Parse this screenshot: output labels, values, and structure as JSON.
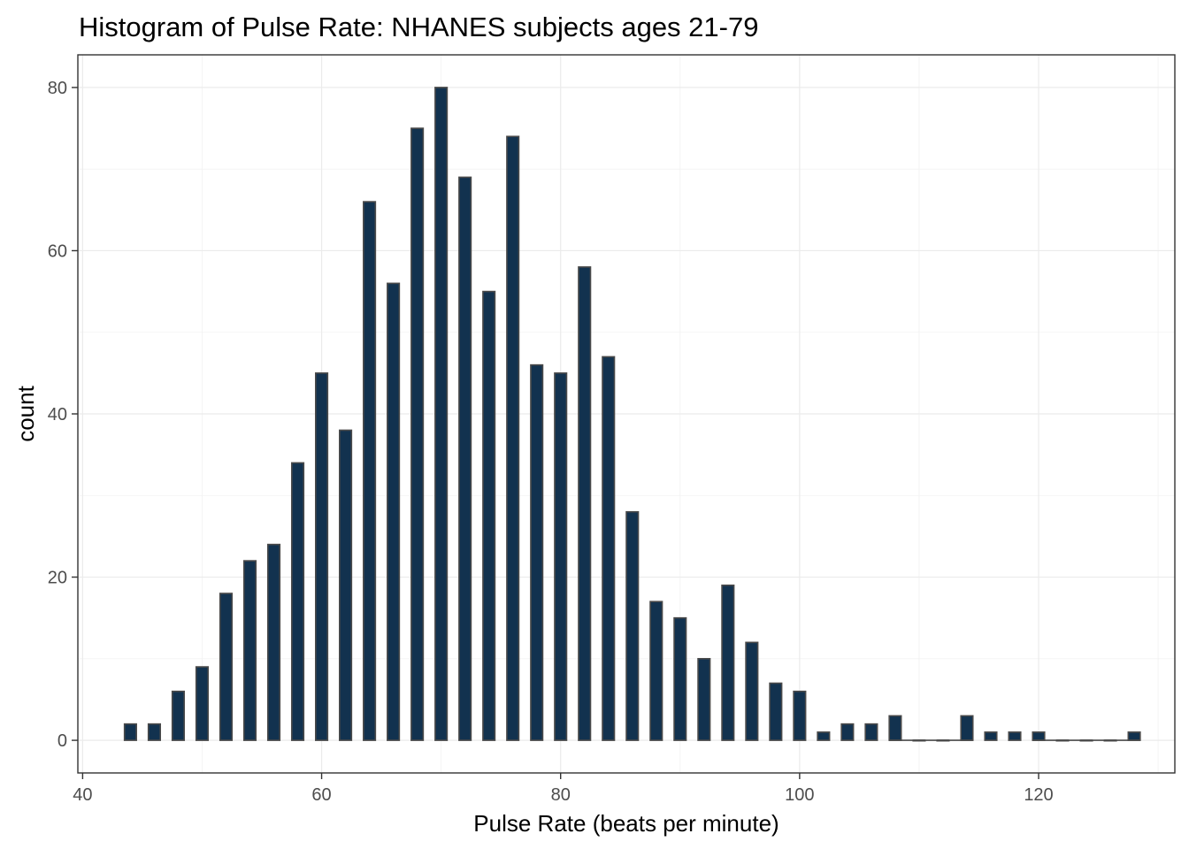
{
  "chart_data": {
    "type": "bar",
    "title": "Histogram of Pulse Rate: NHANES subjects ages 21-79",
    "xlabel": "Pulse Rate (beats per minute)",
    "ylabel": "count",
    "xlim": [
      39.6,
      131.4
    ],
    "ylim": [
      -4,
      84
    ],
    "x_ticks": [
      40,
      60,
      80,
      100,
      120
    ],
    "y_ticks": [
      0,
      20,
      40,
      60,
      80
    ],
    "bar_width": 1,
    "x": [
      44,
      46,
      48,
      50,
      52,
      54,
      56,
      58,
      60,
      62,
      64,
      66,
      68,
      70,
      72,
      74,
      76,
      78,
      80,
      82,
      84,
      86,
      88,
      90,
      92,
      94,
      96,
      98,
      100,
      102,
      104,
      106,
      108,
      110,
      112,
      114,
      116,
      118,
      120,
      122,
      124,
      126,
      128
    ],
    "values": [
      2,
      2,
      6,
      9,
      18,
      22,
      24,
      34,
      45,
      38,
      66,
      56,
      75,
      80,
      69,
      55,
      74,
      46,
      45,
      58,
      47,
      28,
      17,
      15,
      10,
      19,
      12,
      7,
      6,
      1,
      2,
      2,
      3,
      0,
      0,
      3,
      1,
      1,
      1,
      0,
      0,
      0,
      1
    ],
    "grid": true,
    "fill_color": "#12324f",
    "outline_color": "#4a4a4a"
  }
}
